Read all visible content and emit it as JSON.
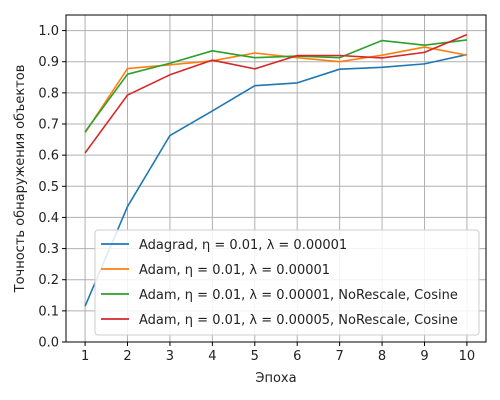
{
  "chart_data": {
    "type": "line",
    "xlabel": "Эпоха",
    "ylabel": "Точность обнаружения объектов",
    "xlim": [
      0.55,
      10.45
    ],
    "ylim": [
      0.0,
      1.05
    ],
    "x": [
      1,
      2,
      3,
      4,
      5,
      6,
      7,
      8,
      9,
      10
    ],
    "x_ticks": [
      "1",
      "2",
      "3",
      "4",
      "5",
      "6",
      "7",
      "8",
      "9",
      "10"
    ],
    "y_ticks": [
      0.0,
      0.1,
      0.2,
      0.3,
      0.4,
      0.5,
      0.6,
      0.7,
      0.8,
      0.9,
      1.0
    ],
    "y_tick_labels": [
      "0.0",
      "0.1",
      "0.2",
      "0.3",
      "0.4",
      "0.5",
      "0.6",
      "0.7",
      "0.8",
      "0.9",
      "1.0"
    ],
    "grid": true,
    "legend_position": "bottom-right",
    "series": [
      {
        "name": "Adagrad, η = 0.01, λ = 0.00001",
        "color": "#1f77b4",
        "values": [
          0.115,
          0.435,
          0.663,
          0.742,
          0.823,
          0.832,
          0.876,
          0.882,
          0.893,
          0.923
        ]
      },
      {
        "name": "Adam, η = 0.01, λ = 0.00001",
        "color": "#ff7f0e",
        "values": [
          0.672,
          0.878,
          0.89,
          0.903,
          0.928,
          0.913,
          0.9,
          0.921,
          0.947,
          0.921
        ]
      },
      {
        "name": "Adam, η = 0.01, λ = 0.00001, NoRescale, Cosine",
        "color": "#2ca02c",
        "values": [
          0.675,
          0.86,
          0.895,
          0.935,
          0.913,
          0.918,
          0.913,
          0.968,
          0.953,
          0.97
        ]
      },
      {
        "name": "Adam, η = 0.01, λ = 0.00005, NoRescale, Cosine",
        "color": "#d62728",
        "values": [
          0.607,
          0.793,
          0.858,
          0.905,
          0.877,
          0.92,
          0.92,
          0.912,
          0.93,
          0.987
        ]
      }
    ]
  }
}
